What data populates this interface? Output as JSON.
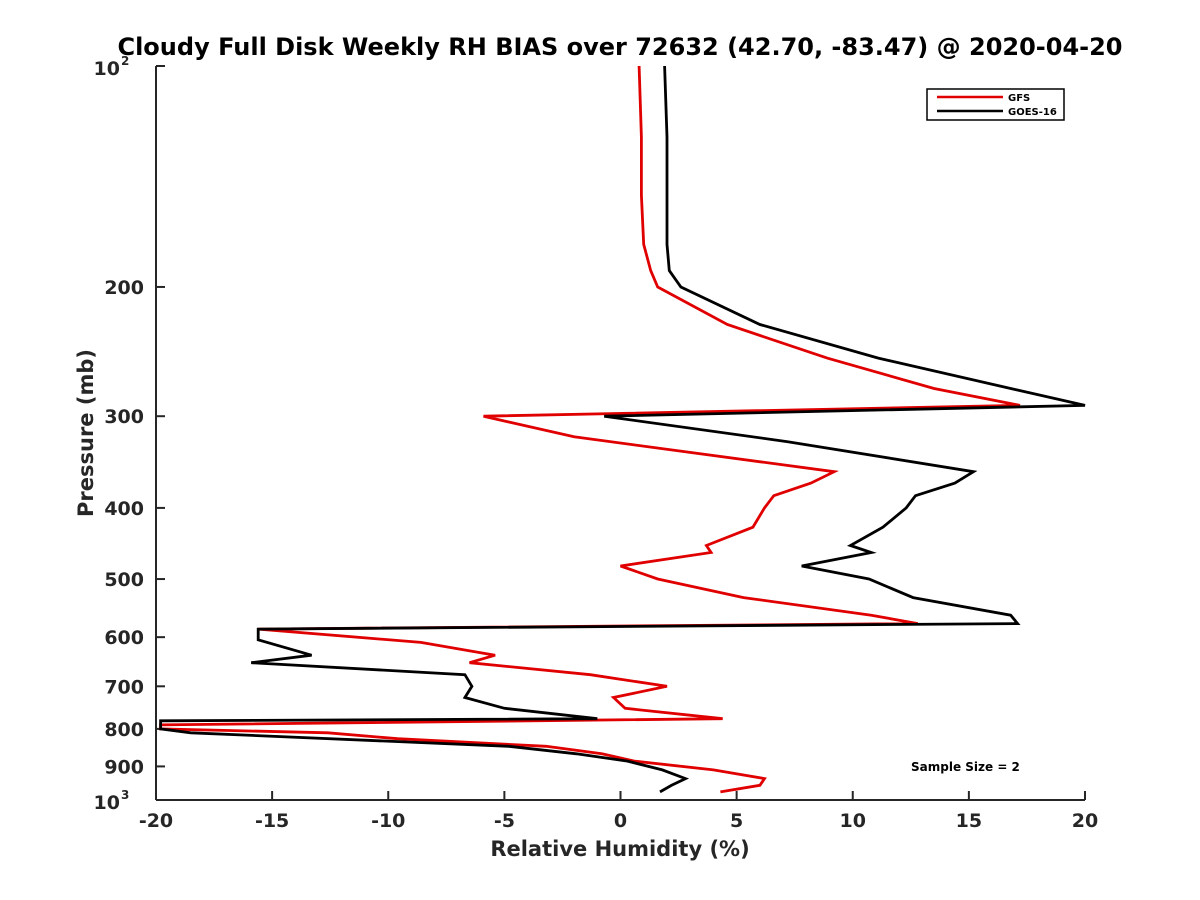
{
  "chart_data": {
    "type": "line",
    "title": "Cloudy Full Disk Weekly RH BIAS over 72632 (42.70, -83.47) @ 2020-04-20",
    "xlabel": "Relative Humidity (%)",
    "ylabel": "Pressure (mb)",
    "xlim": [
      -20,
      20
    ],
    "ylim": [
      100,
      1000
    ],
    "yscale": "log",
    "yreversed": true,
    "grid": false,
    "legend_position": "top-right",
    "x_ticks": [
      "-20",
      "-15",
      "-10",
      "-5",
      "0",
      "5",
      "10",
      "15",
      "20"
    ],
    "y_ticks": [
      {
        "value": 100,
        "base": "10",
        "exp": "2"
      },
      {
        "value": 200,
        "label": "200"
      },
      {
        "value": 300,
        "label": "300"
      },
      {
        "value": 400,
        "label": "400"
      },
      {
        "value": 500,
        "label": "500"
      },
      {
        "value": 600,
        "label": "600"
      },
      {
        "value": 700,
        "label": "700"
      },
      {
        "value": 800,
        "label": "800"
      },
      {
        "value": 900,
        "label": "900"
      },
      {
        "value": 1000,
        "base": "10",
        "exp": "3"
      }
    ],
    "series": [
      {
        "name": "GFS",
        "color": "#e00000",
        "points": [
          [
            0.8,
            100
          ],
          [
            0.9,
            125
          ],
          [
            0.9,
            150
          ],
          [
            1.0,
            175
          ],
          [
            1.3,
            190
          ],
          [
            1.6,
            200
          ],
          [
            4.6,
            225
          ],
          [
            8.9,
            250
          ],
          [
            13.5,
            275
          ],
          [
            17.2,
            290
          ],
          [
            -5.9,
            300
          ],
          [
            -2.0,
            320
          ],
          [
            9.2,
            357
          ],
          [
            8.2,
            370
          ],
          [
            6.6,
            385
          ],
          [
            6.2,
            400
          ],
          [
            5.7,
            425
          ],
          [
            3.7,
            450
          ],
          [
            3.9,
            460
          ],
          [
            0.0,
            480
          ],
          [
            1.6,
            500
          ],
          [
            5.3,
            530
          ],
          [
            10.8,
            560
          ],
          [
            12.8,
            575
          ],
          [
            -15.6,
            585
          ],
          [
            -8.6,
            610
          ],
          [
            -5.4,
            635
          ],
          [
            -6.5,
            650
          ],
          [
            -1.3,
            675
          ],
          [
            2.0,
            700
          ],
          [
            -0.3,
            725
          ],
          [
            0.2,
            750
          ],
          [
            4.4,
            775
          ],
          [
            -19.8,
            790
          ],
          [
            -19.8,
            800
          ],
          [
            -12.6,
            810
          ],
          [
            -9.6,
            825
          ],
          [
            -3.2,
            845
          ],
          [
            -0.8,
            865
          ],
          [
            0.6,
            885
          ],
          [
            4.0,
            910
          ],
          [
            6.2,
            935
          ],
          [
            6.0,
            955
          ],
          [
            4.3,
            975
          ]
        ]
      },
      {
        "name": "GOES-16",
        "color": "#000000",
        "points": [
          [
            1.9,
            100
          ],
          [
            2.0,
            125
          ],
          [
            2.0,
            150
          ],
          [
            2.0,
            175
          ],
          [
            2.1,
            190
          ],
          [
            2.6,
            200
          ],
          [
            6.0,
            225
          ],
          [
            11.1,
            250
          ],
          [
            16.8,
            275
          ],
          [
            20.0,
            290
          ],
          [
            -0.7,
            300
          ],
          [
            7.2,
            325
          ],
          [
            15.2,
            357
          ],
          [
            14.4,
            370
          ],
          [
            12.7,
            385
          ],
          [
            12.3,
            400
          ],
          [
            11.3,
            425
          ],
          [
            9.9,
            450
          ],
          [
            10.8,
            460
          ],
          [
            7.8,
            480
          ],
          [
            10.7,
            500
          ],
          [
            12.6,
            530
          ],
          [
            16.8,
            560
          ],
          [
            17.1,
            575
          ],
          [
            -15.6,
            585
          ],
          [
            -15.6,
            605
          ],
          [
            -13.3,
            635
          ],
          [
            -15.9,
            650
          ],
          [
            -6.7,
            675
          ],
          [
            -6.4,
            700
          ],
          [
            -6.7,
            725
          ],
          [
            -5.0,
            750
          ],
          [
            -1.0,
            775
          ],
          [
            -19.8,
            780
          ],
          [
            -19.8,
            800
          ],
          [
            -18.5,
            810
          ],
          [
            -4.8,
            845
          ],
          [
            -1.9,
            865
          ],
          [
            0.3,
            885
          ],
          [
            1.8,
            910
          ],
          [
            2.8,
            935
          ],
          [
            2.2,
            955
          ],
          [
            1.7,
            975
          ]
        ]
      }
    ],
    "annotation": "Sample Size = 2"
  }
}
